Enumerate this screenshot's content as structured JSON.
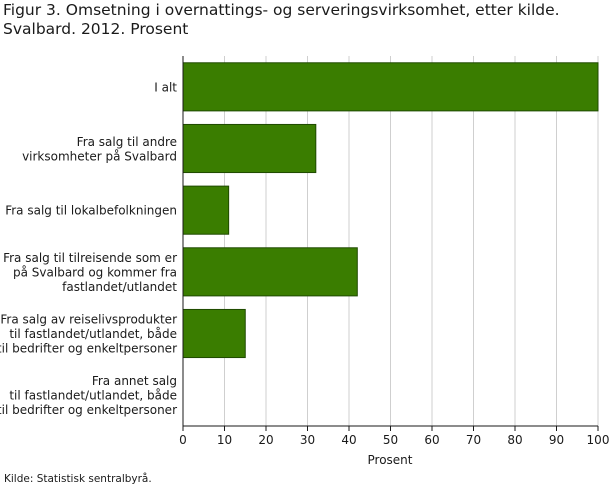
{
  "title_lines": [
    "Figur 3. Omsetning i overnattings- og serveringsvirksomhet, etter kilde.",
    "Svalbard. 2012. Prosent"
  ],
  "source": "Kilde: Statistisk sentralbyrå.",
  "colors": {
    "bar_fill": "#3a7d00",
    "bar_stroke": "#1f4a00",
    "grid": "#cfcfcf",
    "axis": "#1a1a1a"
  },
  "chart_data": {
    "type": "bar",
    "orientation": "horizontal",
    "xlabel": "Prosent",
    "xlim": [
      0,
      100
    ],
    "xticks": [
      0,
      10,
      20,
      30,
      40,
      50,
      60,
      70,
      80,
      90,
      100
    ],
    "grid": true,
    "categories": [
      [
        "I alt"
      ],
      [
        "Fra salg til andre",
        "virksomheter på Svalbard"
      ],
      [
        "Fra salg til lokalbefolkningen"
      ],
      [
        "Fra salg til tilreisende som er",
        "på Svalbard og kommer fra",
        "fastlandet/utlandet"
      ],
      [
        "Fra salg av reiselivsprodukter",
        "til fastlandet/utlandet, både",
        "til bedrifter og enkeltpersoner"
      ],
      [
        "Fra annet salg",
        "til fastlandet/utlandet, både",
        "til bedrifter og enkeltpersoner"
      ]
    ],
    "values": [
      100,
      32,
      11,
      42,
      15,
      0
    ]
  }
}
